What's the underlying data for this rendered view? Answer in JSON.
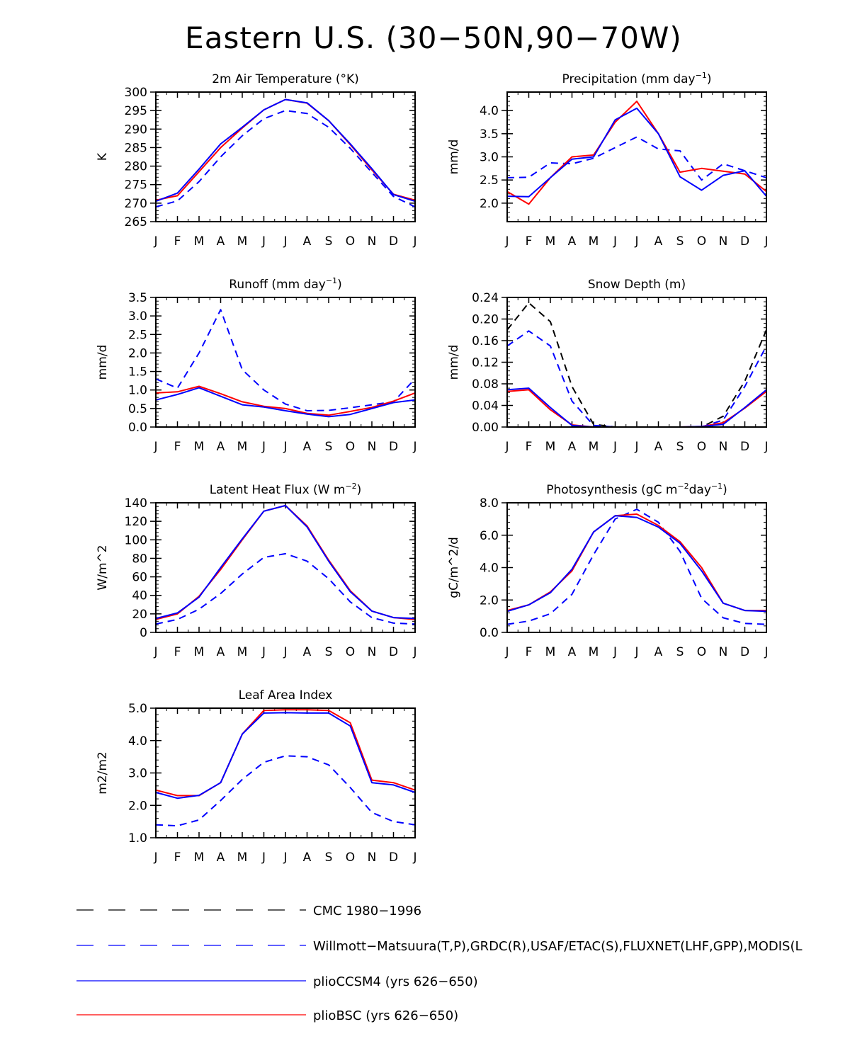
{
  "figure_title": "Eastern U.S. (30−50N,90−70W)",
  "months": [
    "J",
    "F",
    "M",
    "A",
    "M",
    "J",
    "J",
    "A",
    "S",
    "O",
    "N",
    "D",
    "J"
  ],
  "colors": {
    "red": "#ff0000",
    "blue": "#0000ff",
    "black": "#000000"
  },
  "legend": [
    {
      "label": "CMC 1980−1996",
      "color": "#000000",
      "dash": true
    },
    {
      "label": "Willmott−Matsuura(T,P),GRDC(R),USAF/ETAC(S),FLUXNET(LHF,GPP),MODIS(L",
      "color": "#0000ff",
      "dash": true
    },
    {
      "label": "plioCCSM4 (yrs 626−650)",
      "color": "#0000ff",
      "dash": false
    },
    {
      "label": "plioBSC (yrs 626−650)",
      "color": "#ff0000",
      "dash": false
    }
  ],
  "chart_data": [
    {
      "type": "line",
      "title": "2m Air Temperature (°K)",
      "ylabel": "K",
      "ylim": [
        265,
        300
      ],
      "yticks": [
        265,
        270,
        275,
        280,
        285,
        290,
        295,
        300
      ],
      "ytick_labels": [
        "265",
        "270",
        "275",
        "280",
        "285",
        "290",
        "295",
        "300"
      ],
      "series": [
        {
          "name": "Willmott-Matsuura",
          "color": "blue",
          "dash": true,
          "values": [
            269.0,
            270.6,
            275.8,
            282.5,
            288.2,
            292.8,
            295.0,
            294.2,
            290.5,
            284.8,
            278.3,
            271.8,
            269.0
          ]
        },
        {
          "name": "plioBSC",
          "color": "red",
          "dash": false,
          "values": [
            270.8,
            272.0,
            278.5,
            285.0,
            290.3,
            295.2,
            298.0,
            297.0,
            292.3,
            285.8,
            279.0,
            272.4,
            270.8
          ]
        },
        {
          "name": "plioCCSM4",
          "color": "blue",
          "dash": false,
          "values": [
            270.5,
            272.7,
            279.2,
            286.0,
            290.5,
            295.2,
            298.0,
            297.1,
            292.3,
            286.0,
            279.3,
            272.3,
            270.5
          ]
        }
      ]
    },
    {
      "type": "line",
      "title": "Precipitation (mm day",
      "title_sup": "−1",
      "title_end": ")",
      "ylabel": "mm/d",
      "ylim": [
        1.6,
        4.4
      ],
      "yticks": [
        2.0,
        2.5,
        3.0,
        3.5,
        4.0
      ],
      "ytick_labels": [
        "2.0",
        "2.5",
        "3.0",
        "3.5",
        "4.0"
      ],
      "series": [
        {
          "name": "Willmott-Matsuura",
          "color": "blue",
          "dash": true,
          "values": [
            2.55,
            2.56,
            2.87,
            2.85,
            2.97,
            3.2,
            3.43,
            3.17,
            3.13,
            2.5,
            2.85,
            2.7,
            2.55
          ]
        },
        {
          "name": "plioBSC",
          "color": "red",
          "dash": false,
          "values": [
            2.25,
            1.98,
            2.55,
            3.0,
            3.04,
            3.75,
            4.2,
            3.5,
            2.67,
            2.75,
            2.69,
            2.63,
            2.25
          ]
        },
        {
          "name": "plioCCSM4",
          "color": "blue",
          "dash": false,
          "values": [
            2.15,
            2.14,
            2.55,
            2.95,
            3.0,
            3.8,
            4.05,
            3.5,
            2.57,
            2.28,
            2.6,
            2.7,
            2.15
          ]
        }
      ]
    },
    {
      "type": "line",
      "title": "Runoff (mm day",
      "title_sup": "−1",
      "title_end": ")",
      "ylabel": "mm/d",
      "ylim": [
        0,
        3.5
      ],
      "yticks": [
        0,
        0.5,
        1.0,
        1.5,
        2.0,
        2.5,
        3.0,
        3.5
      ],
      "ytick_labels": [
        "0.0",
        "0.5",
        "1.0",
        "1.5",
        "2.0",
        "2.5",
        "3.0",
        "3.5"
      ],
      "series": [
        {
          "name": "GRDC",
          "color": "blue",
          "dash": true,
          "values": [
            1.3,
            1.05,
            2.0,
            3.17,
            1.55,
            1.0,
            0.62,
            0.44,
            0.45,
            0.52,
            0.6,
            0.68,
            1.3
          ]
        },
        {
          "name": "plioBSC",
          "color": "red",
          "dash": false,
          "values": [
            0.92,
            0.95,
            1.1,
            0.9,
            0.68,
            0.56,
            0.5,
            0.37,
            0.32,
            0.42,
            0.53,
            0.7,
            0.92
          ]
        },
        {
          "name": "plioCCSM4",
          "color": "blue",
          "dash": false,
          "values": [
            0.73,
            0.88,
            1.06,
            0.83,
            0.6,
            0.54,
            0.44,
            0.35,
            0.28,
            0.34,
            0.5,
            0.66,
            0.73
          ]
        }
      ]
    },
    {
      "type": "line",
      "title": "Snow Depth (m)",
      "ylabel": "mm/d",
      "ylim": [
        0,
        0.24
      ],
      "yticks": [
        0,
        0.04,
        0.08,
        0.12,
        0.16,
        0.2,
        0.24
      ],
      "ytick_labels": [
        "0.00",
        "0.04",
        "0.08",
        "0.12",
        "0.16",
        "0.20",
        "0.24"
      ],
      "series": [
        {
          "name": "CMC",
          "color": "black",
          "dash": true,
          "values": [
            0.18,
            0.23,
            0.195,
            0.075,
            0.005,
            0.0,
            0.0,
            0.0,
            0.0,
            0.0,
            0.02,
            0.085,
            0.18
          ]
        },
        {
          "name": "USAF/ETAC",
          "color": "blue",
          "dash": true,
          "values": [
            0.15,
            0.178,
            0.15,
            0.048,
            0.003,
            0.0,
            0.0,
            0.0,
            0.0,
            0.0,
            0.013,
            0.075,
            0.15
          ]
        },
        {
          "name": "plioBSC",
          "color": "red",
          "dash": false,
          "values": [
            0.066,
            0.069,
            0.032,
            0.004,
            0.0,
            0.0,
            0.0,
            0.0,
            0.0,
            0.001,
            0.008,
            0.035,
            0.066
          ]
        },
        {
          "name": "plioCCSM4",
          "color": "blue",
          "dash": false,
          "values": [
            0.069,
            0.072,
            0.036,
            0.003,
            0.0,
            0.0,
            0.0,
            0.0,
            0.0,
            0.001,
            0.005,
            0.036,
            0.069
          ]
        }
      ]
    },
    {
      "type": "line",
      "title": "Latent Heat Flux (W m",
      "title_sup": "−2",
      "title_end": ")",
      "ylabel": "W/m^2",
      "ylim": [
        0,
        140
      ],
      "yticks": [
        0,
        20,
        40,
        60,
        80,
        100,
        120,
        140
      ],
      "ytick_labels": [
        "0",
        "20",
        "40",
        "60",
        "80",
        "100",
        "120",
        "140"
      ],
      "series": [
        {
          "name": "FLUXNET",
          "color": "blue",
          "dash": true,
          "values": [
            9,
            14,
            25,
            42,
            63,
            81,
            85,
            77,
            58,
            33,
            16,
            10,
            9
          ]
        },
        {
          "name": "plioBSC",
          "color": "red",
          "dash": false,
          "values": [
            14,
            20,
            39,
            68,
            100,
            131,
            137,
            115,
            78,
            45,
            23,
            16,
            14
          ]
        },
        {
          "name": "plioCCSM4",
          "color": "blue",
          "dash": false,
          "values": [
            15,
            21,
            38,
            70,
            101,
            131,
            137,
            114,
            77,
            44,
            23,
            16,
            15
          ]
        }
      ]
    },
    {
      "type": "line",
      "title": "Photosynthesis (gC m",
      "title_sup": "−2",
      "title_mid": "day",
      "title_sup2": "−1",
      "title_end": ")",
      "ylabel": "gC/m^2/d",
      "ylim": [
        0,
        8
      ],
      "yticks": [
        0,
        2,
        4,
        6,
        8
      ],
      "ytick_labels": [
        "0.0",
        "2.0",
        "4.0",
        "6.0",
        "8.0"
      ],
      "series": [
        {
          "name": "FLUXNET",
          "color": "blue",
          "dash": true,
          "values": [
            0.5,
            0.7,
            1.15,
            2.35,
            4.8,
            7.0,
            7.6,
            6.8,
            5.0,
            2.1,
            0.9,
            0.55,
            0.5
          ]
        },
        {
          "name": "plioBSC",
          "color": "red",
          "dash": false,
          "values": [
            1.35,
            1.7,
            2.5,
            3.8,
            6.2,
            7.2,
            7.3,
            6.6,
            5.6,
            4.0,
            1.8,
            1.35,
            1.35
          ]
        },
        {
          "name": "plioCCSM4",
          "color": "blue",
          "dash": false,
          "values": [
            1.3,
            1.7,
            2.45,
            3.9,
            6.2,
            7.2,
            7.1,
            6.5,
            5.5,
            3.8,
            1.8,
            1.35,
            1.3
          ]
        }
      ]
    },
    {
      "type": "line",
      "title": "Leaf Area Index",
      "ylabel": "m2/m2",
      "ylim": [
        1.0,
        5.0
      ],
      "yticks": [
        1,
        2,
        3,
        4,
        5
      ],
      "ytick_labels": [
        "1.0",
        "2.0",
        "3.0",
        "4.0",
        "5.0"
      ],
      "series": [
        {
          "name": "MODIS",
          "color": "blue",
          "dash": true,
          "values": [
            1.4,
            1.37,
            1.55,
            2.15,
            2.8,
            3.33,
            3.53,
            3.5,
            3.25,
            2.55,
            1.78,
            1.5,
            1.4
          ]
        },
        {
          "name": "plioBSC",
          "color": "red",
          "dash": false,
          "values": [
            2.47,
            2.3,
            2.3,
            2.7,
            4.2,
            4.93,
            4.95,
            4.95,
            4.93,
            4.55,
            2.78,
            2.7,
            2.47
          ]
        },
        {
          "name": "plioCCSM4",
          "color": "blue",
          "dash": false,
          "values": [
            2.4,
            2.22,
            2.31,
            2.7,
            4.2,
            4.85,
            4.86,
            4.85,
            4.85,
            4.45,
            2.7,
            2.63,
            2.4
          ]
        }
      ]
    }
  ]
}
